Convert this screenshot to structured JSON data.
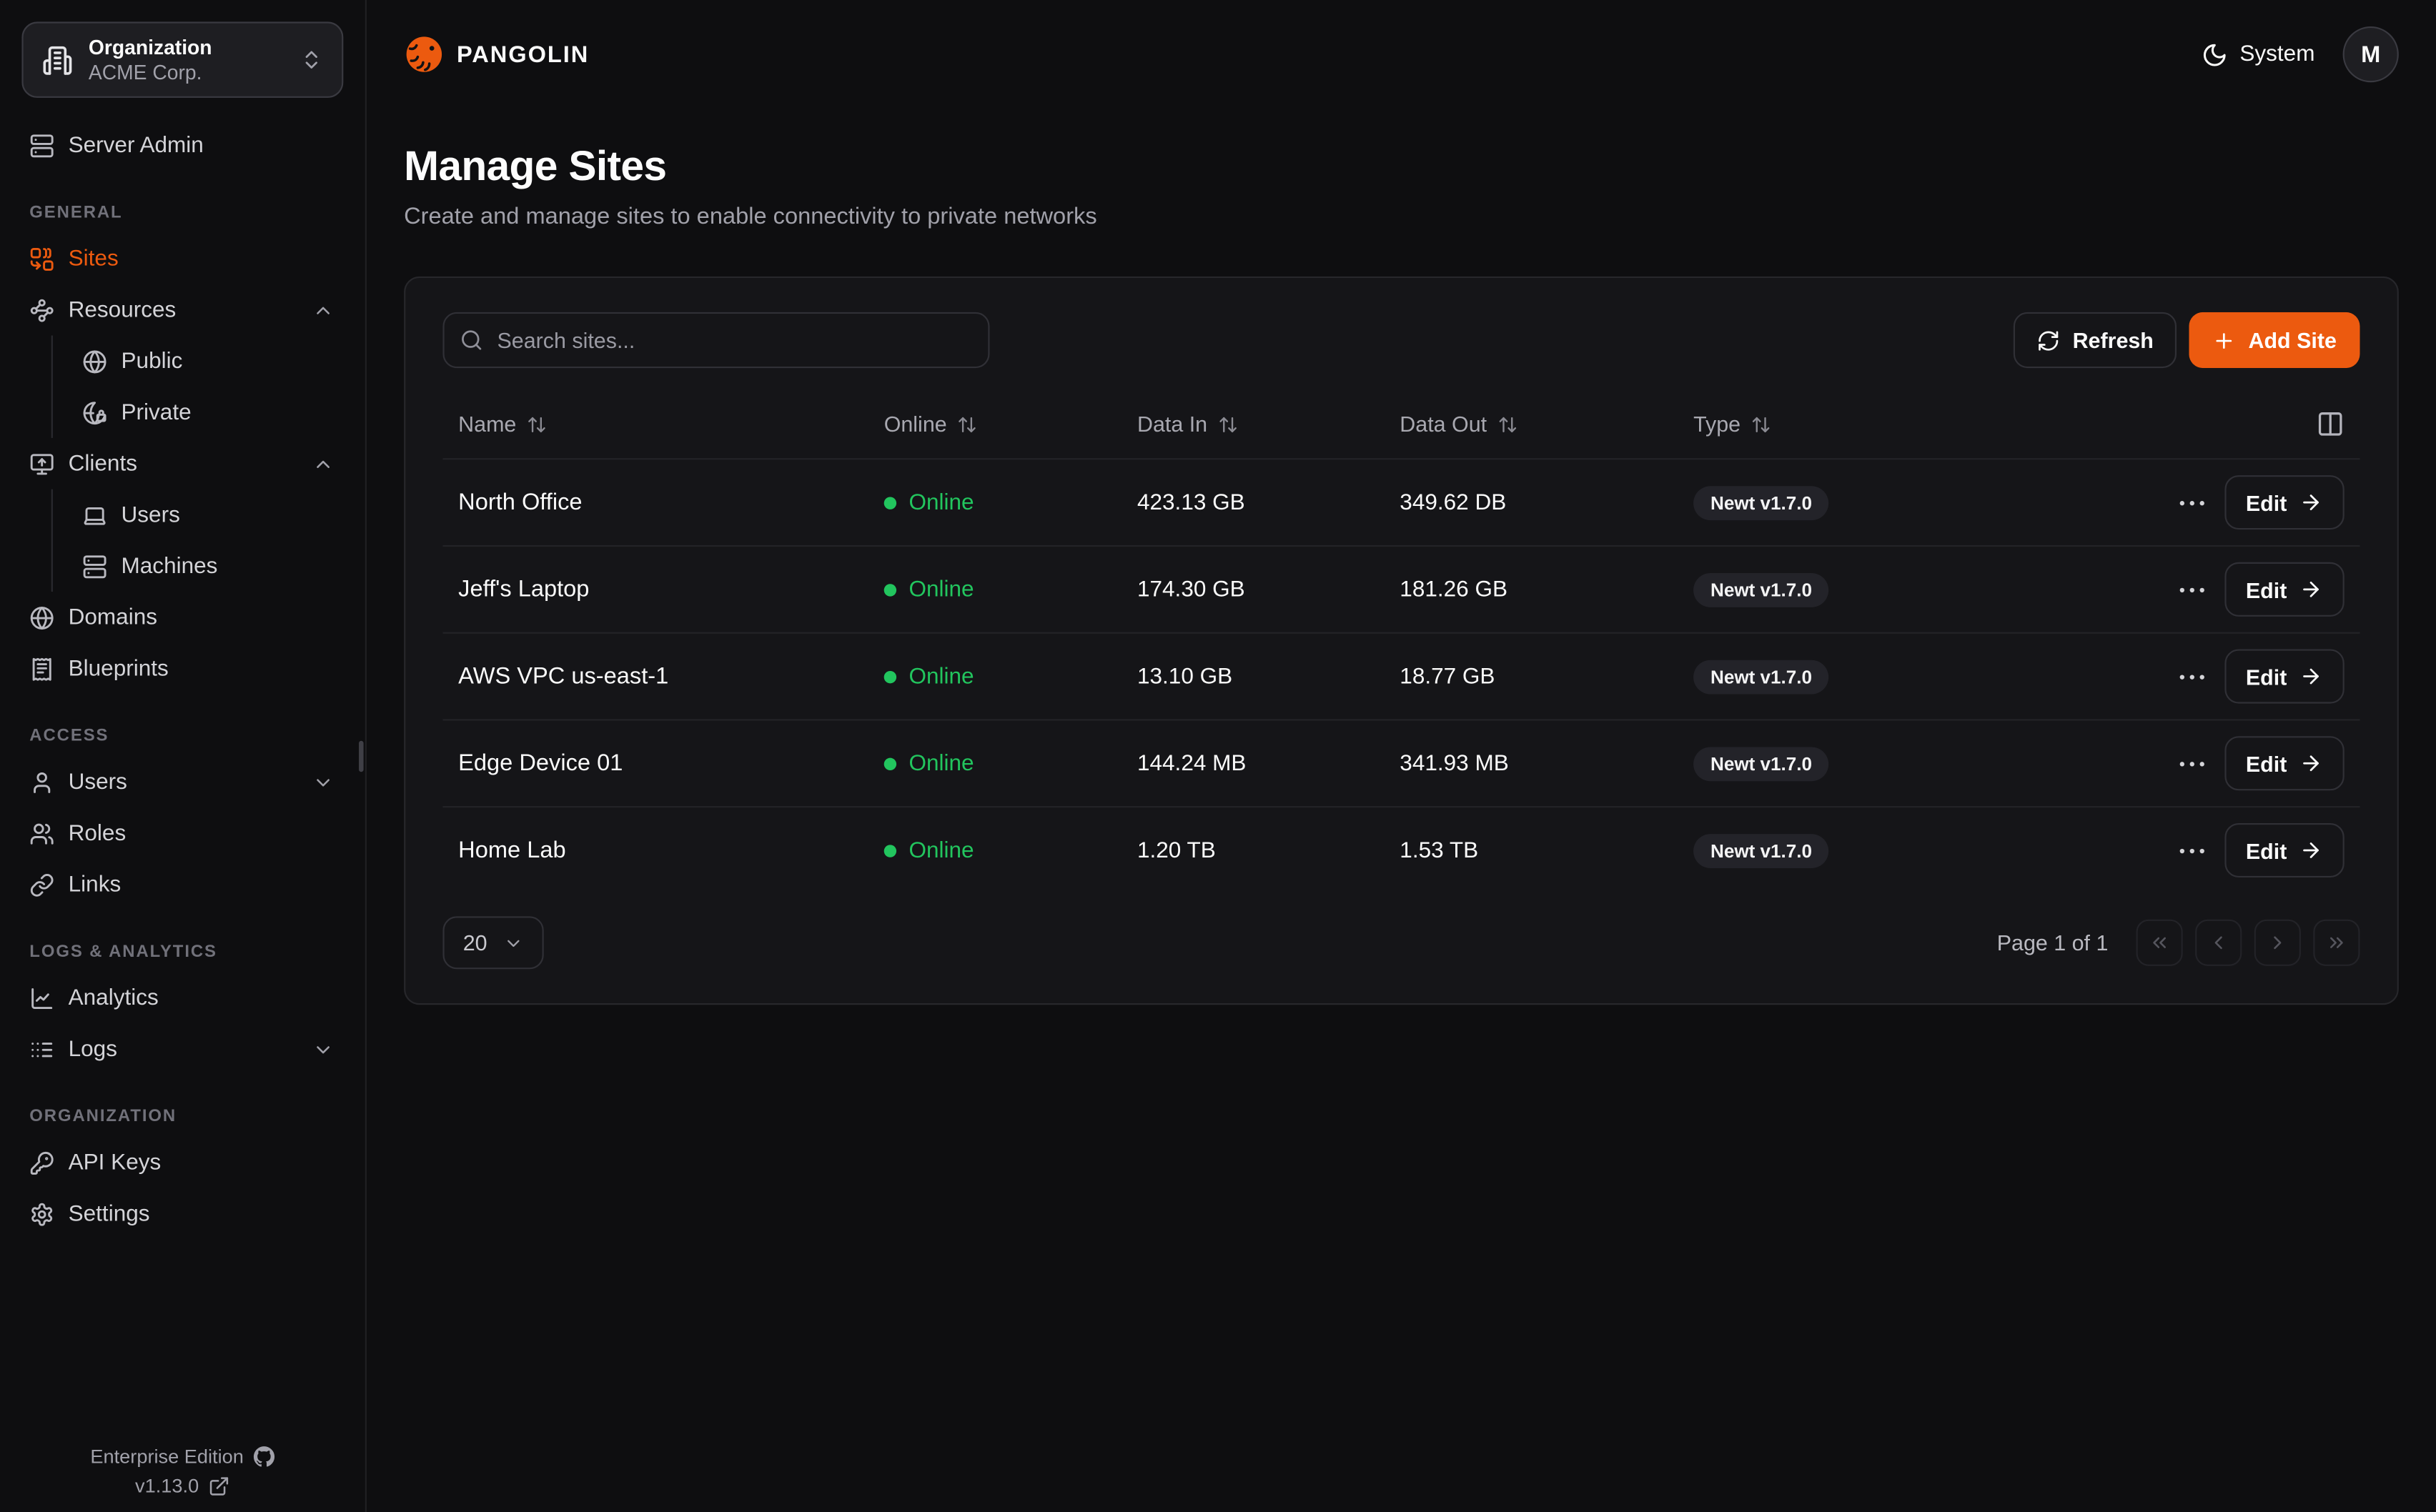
{
  "colors": {
    "accent": "#EC5A0F",
    "online": "#22C55E",
    "status_dot": "#22C55E"
  },
  "org_switcher": {
    "label": "Organization",
    "value": "ACME Corp.",
    "icon": "building"
  },
  "brand": {
    "name": "PANGOLIN",
    "logo_icon": "pangolin-logo"
  },
  "topbar": {
    "theme_label": "System",
    "theme_icon": "moon",
    "avatar_initial": "M"
  },
  "sidebar": {
    "top_item": {
      "label": "Server Admin",
      "icon": "server"
    },
    "sections": [
      {
        "label": "GENERAL",
        "items": [
          {
            "label": "Sites",
            "icon": "combine",
            "active": true
          },
          {
            "label": "Resources",
            "icon": "waypoints",
            "chevron": "up",
            "children": [
              {
                "label": "Public",
                "icon": "globe"
              },
              {
                "label": "Private",
                "icon": "globe-lock"
              }
            ]
          },
          {
            "label": "Clients",
            "icon": "monitor-up",
            "chevron": "up",
            "children": [
              {
                "label": "Users",
                "icon": "laptop"
              },
              {
                "label": "Machines",
                "icon": "server"
              }
            ]
          },
          {
            "label": "Domains",
            "icon": "globe"
          },
          {
            "label": "Blueprints",
            "icon": "receipt"
          }
        ]
      },
      {
        "label": "ACCESS",
        "items": [
          {
            "label": "Users",
            "icon": "user",
            "chevron": "down"
          },
          {
            "label": "Roles",
            "icon": "users"
          },
          {
            "label": "Links",
            "icon": "link"
          }
        ]
      },
      {
        "label": "LOGS & ANALYTICS",
        "items": [
          {
            "label": "Analytics",
            "icon": "chart"
          },
          {
            "label": "Logs",
            "icon": "logs",
            "chevron": "down"
          }
        ]
      },
      {
        "label": "ORGANIZATION",
        "items": [
          {
            "label": "API Keys",
            "icon": "key"
          },
          {
            "label": "Settings",
            "icon": "gear"
          }
        ]
      }
    ],
    "footer": {
      "edition": "Enterprise Edition",
      "version": "v1.13.0"
    }
  },
  "page": {
    "title": "Manage Sites",
    "subtitle": "Create and manage sites to enable connectivity to private networks"
  },
  "toolbar": {
    "search_placeholder": "Search sites...",
    "refresh_label": "Refresh",
    "add_site_label": "Add Site"
  },
  "table": {
    "columns": [
      "Name",
      "Online",
      "Data In",
      "Data Out",
      "Type"
    ],
    "edit_label": "Edit",
    "rows": [
      {
        "name": "North Office",
        "status": "Online",
        "data_in": "423.13 GB",
        "data_out": "349.62 DB",
        "type": "Newt v1.7.0"
      },
      {
        "name": "Jeff's Laptop",
        "status": "Online",
        "data_in": "174.30 GB",
        "data_out": "181.26 GB",
        "type": "Newt v1.7.0"
      },
      {
        "name": "AWS VPC us-east-1",
        "status": "Online",
        "data_in": "13.10 GB",
        "data_out": "18.77 GB",
        "type": "Newt v1.7.0"
      },
      {
        "name": "Edge Device 01",
        "status": "Online",
        "data_in": "144.24 MB",
        "data_out": "341.93 MB",
        "type": "Newt v1.7.0"
      },
      {
        "name": "Home Lab",
        "status": "Online",
        "data_in": "1.20 TB",
        "data_out": "1.53 TB",
        "type": "Newt v1.7.0"
      }
    ]
  },
  "pagination": {
    "page_size": "20",
    "page_info": "Page 1 of 1",
    "buttons": [
      "chevrons-left",
      "chevron-left",
      "chevron-right",
      "chevrons-right"
    ]
  }
}
